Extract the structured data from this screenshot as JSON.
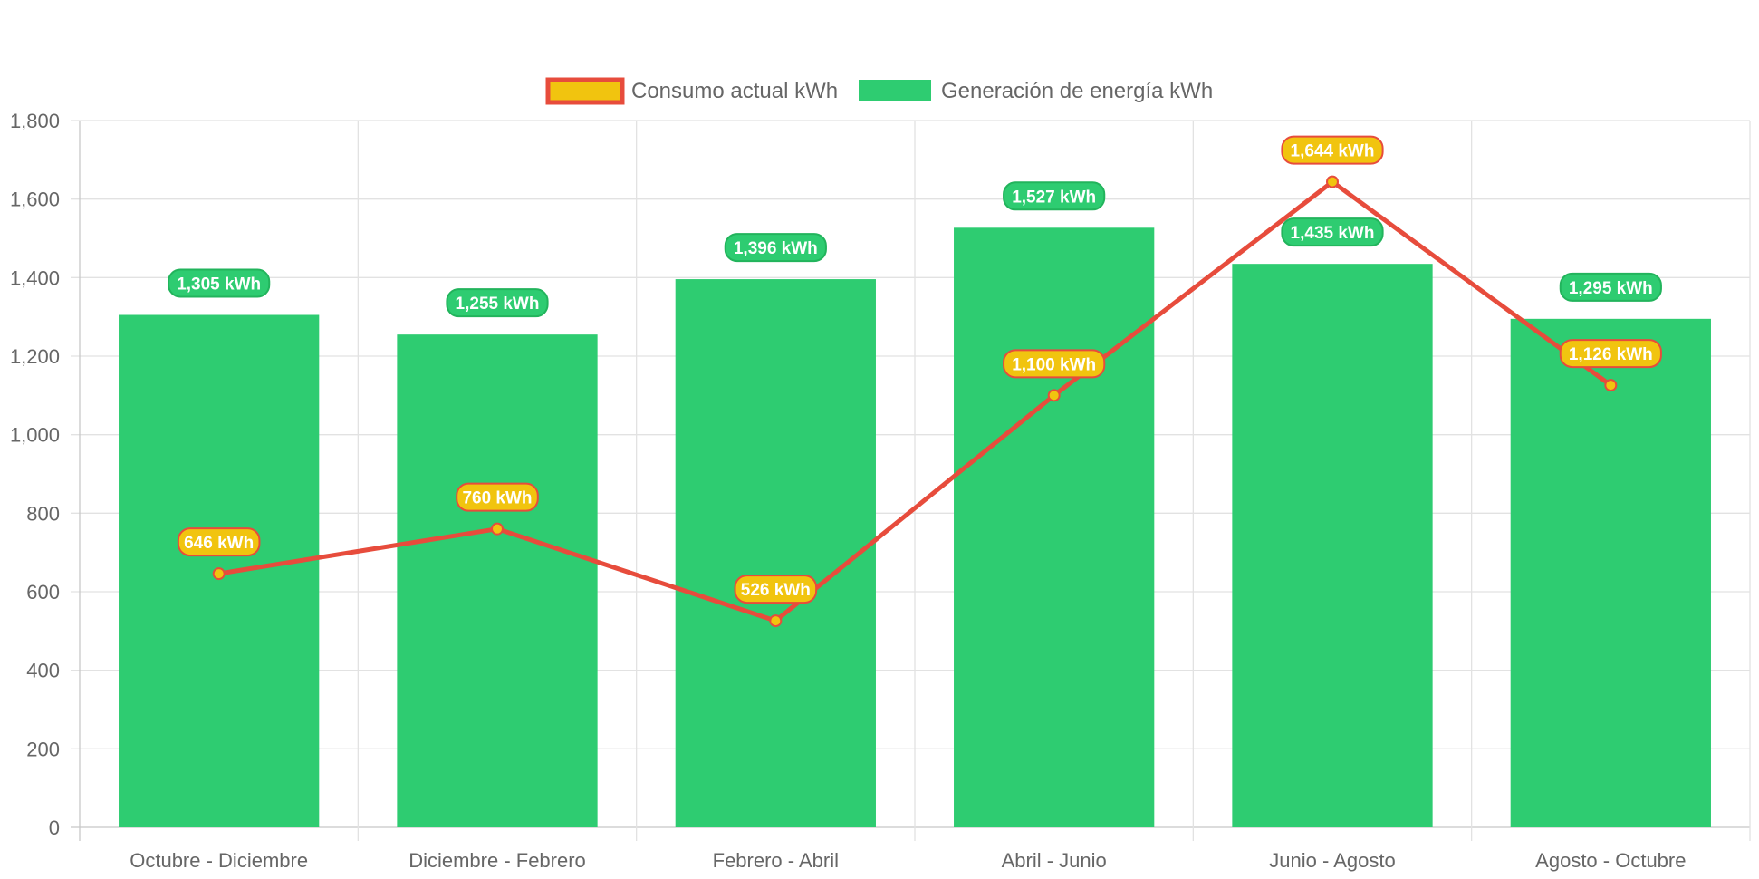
{
  "chart_data": {
    "type": "bar",
    "categories": [
      "Octubre - Diciembre",
      "Diciembre - Febrero",
      "Febrero - Abril",
      "Abril - Junio",
      "Junio - Agosto",
      "Agosto - Octubre"
    ],
    "series": [
      {
        "name": "Consumo actual kWh",
        "type": "line",
        "values": [
          646,
          760,
          526,
          1100,
          1644,
          1126
        ],
        "labels": [
          "646 kWh",
          "760 kWh",
          "526 kWh",
          "1,100 kWh",
          "1,644 kWh",
          "1,126 kWh"
        ],
        "color": "#e74c3c",
        "fill_color": "#f1c40f"
      },
      {
        "name": "Generación de energía kWh",
        "type": "bar",
        "values": [
          1305,
          1255,
          1396,
          1527,
          1435,
          1295
        ],
        "labels": [
          "1,305 kWh",
          "1,255 kWh",
          "1,396 kWh",
          "1,527 kWh",
          "1,435 kWh",
          "1,295 kWh"
        ],
        "color": "#2ecc71"
      }
    ],
    "y_ticks": [
      "0",
      "200",
      "400",
      "600",
      "800",
      "1,000",
      "1,200",
      "1,400",
      "1,600",
      "1,800"
    ],
    "ylim": [
      0,
      1800
    ],
    "grid": true,
    "legend_position": "top"
  }
}
